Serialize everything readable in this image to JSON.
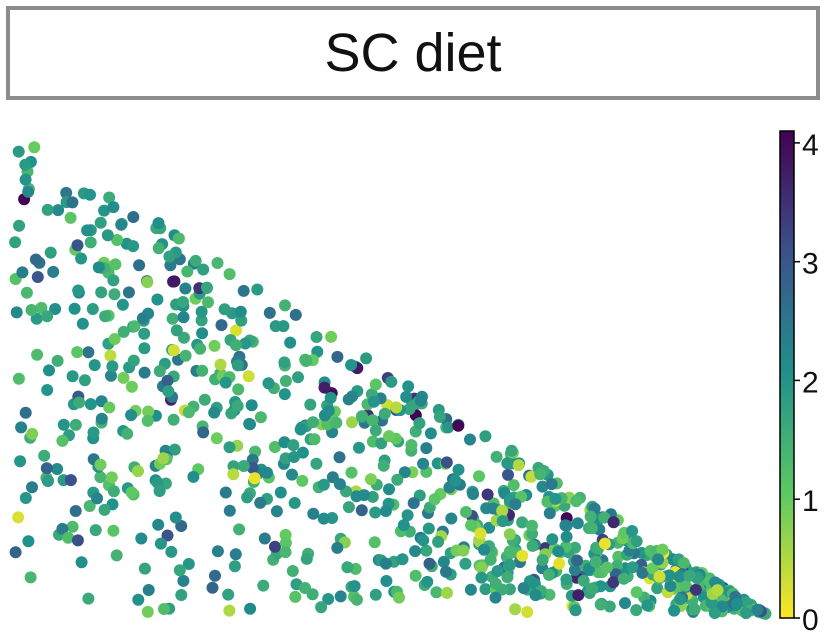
{
  "chart_data": {
    "type": "scatter",
    "title": "SC diet",
    "xlabel": "",
    "ylabel": "",
    "color_scale": {
      "colormap": "viridis_r",
      "ticks": [
        0,
        1,
        2,
        3,
        4
      ],
      "tick_labels": [
        "0",
        "1",
        "2",
        "3",
        "4"
      ],
      "min": 0,
      "max": 4.1
    },
    "point_count": 900,
    "distribution": "points fill a right triangle region; value mostly 1.5-2.5, occasional 0-1 and 3-4",
    "colors": {
      "low": "#fde725",
      "mid": "#21918c",
      "high": "#440154"
    }
  }
}
